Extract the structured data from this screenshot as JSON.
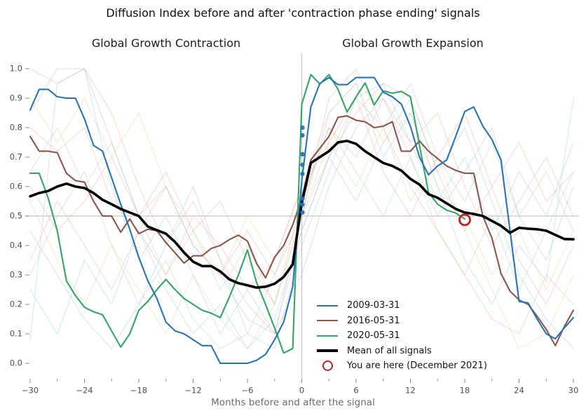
{
  "title": "Diffusion Index before and after 'contraction phase ending' signals",
  "panel_labels": {
    "left": "Global Growth Contraction",
    "right": "Global Growth Expansion"
  },
  "legend": {
    "items": [
      {
        "label": "2009-03-31",
        "type": "line",
        "color": "#2874b2"
      },
      {
        "label": "2016-05-31",
        "type": "line",
        "color": "#8c564b"
      },
      {
        "label": "2020-05-31",
        "type": "line",
        "color": "#33a567"
      },
      {
        "label": "Mean of all signals",
        "type": "thick-line",
        "color": "#000000"
      },
      {
        "label": "You are here (December 2021)",
        "type": "ring",
        "color": "#b9242a"
      }
    ]
  },
  "colors": {
    "blue": "#2874b2",
    "brown": "#8c564b",
    "green": "#33a567",
    "mean": "#000000",
    "marker_red": "#b9242a",
    "ref_gray": "#c6c6c6",
    "tick": "#8a8a8a",
    "tick_label": "#4d4d4d"
  },
  "chart_data": {
    "type": "line",
    "title": "Diffusion Index before and after 'contraction phase ending' signals",
    "xlabel": "Months before and after the signal",
    "ylabel": "",
    "xlim": [
      -30.5,
      30.5
    ],
    "ylim": [
      -0.05,
      1.05
    ],
    "grid": false,
    "legend_position": "lower-center-right",
    "x_ticks_major": [
      -30,
      -24,
      -18,
      -12,
      -6,
      0,
      6,
      12,
      18,
      24,
      30
    ],
    "x_tick_labels": [
      "−30",
      "−24",
      "−18",
      "−12",
      "−6",
      "0",
      "6",
      "12",
      "18",
      "24",
      "30"
    ],
    "x_ticks_minor": [
      -27,
      -21,
      -15,
      -9,
      -3,
      3,
      9,
      15,
      21,
      27
    ],
    "y_ticks": [
      0.0,
      0.1,
      0.2,
      0.3,
      0.4,
      0.5,
      0.6,
      0.7,
      0.8,
      0.9,
      1.0
    ],
    "y_tick_labels": [
      "0.0",
      "0.1",
      "0.2",
      "0.3",
      "0.4",
      "0.5",
      "0.6",
      "0.7",
      "0.8",
      "0.9",
      "1.0"
    ],
    "reference_lines": {
      "horizontal_y": 0.5,
      "vertical_x": 0
    },
    "x": [
      -30,
      -29,
      -28,
      -27,
      -26,
      -25,
      -24,
      -23,
      -22,
      -21,
      -20,
      -19,
      -18,
      -17,
      -16,
      -15,
      -14,
      -13,
      -12,
      -11,
      -10,
      -9,
      -8,
      -7,
      -6,
      -5,
      -4,
      -3,
      -2,
      -1,
      0,
      1,
      2,
      3,
      4,
      5,
      6,
      7,
      8,
      9,
      10,
      11,
      12,
      13,
      14,
      15,
      16,
      17,
      18,
      19,
      20,
      21,
      22,
      23,
      24,
      25,
      26,
      27,
      28,
      29,
      30
    ],
    "series": [
      {
        "name": "2009-03-31",
        "color": "#2874b2",
        "width": 2.1,
        "values": [
          0.86,
          0.93,
          0.93,
          0.905,
          0.9,
          0.9,
          0.83,
          0.74,
          0.72,
          0.63,
          0.54,
          0.455,
          0.36,
          0.28,
          0.22,
          0.14,
          0.11,
          0.1,
          0.08,
          0.06,
          0.06,
          0.0,
          0.0,
          0.0,
          0.0,
          0.01,
          0.03,
          0.08,
          0.14,
          0.26,
          0.62,
          0.87,
          0.95,
          0.97,
          0.946,
          0.946,
          0.97,
          0.97,
          0.97,
          0.92,
          0.905,
          0.88,
          0.805,
          0.7,
          0.64,
          0.67,
          0.69,
          0.77,
          0.855,
          0.87,
          0.805,
          0.76,
          0.69,
          0.45,
          0.21,
          0.205,
          0.15,
          0.1,
          0.083,
          0.12,
          0.155
        ]
      },
      {
        "name": "2016-05-31",
        "color": "#8c564b",
        "width": 2.1,
        "values": [
          0.77,
          0.72,
          0.72,
          0.715,
          0.645,
          0.62,
          0.615,
          0.55,
          0.5,
          0.5,
          0.445,
          0.49,
          0.44,
          0.455,
          0.45,
          0.41,
          0.375,
          0.34,
          0.365,
          0.365,
          0.39,
          0.4,
          0.42,
          0.435,
          0.415,
          0.34,
          0.29,
          0.36,
          0.4,
          0.47,
          0.56,
          0.69,
          0.73,
          0.77,
          0.835,
          0.84,
          0.825,
          0.82,
          0.8,
          0.805,
          0.82,
          0.72,
          0.72,
          0.755,
          0.72,
          0.695,
          0.67,
          0.655,
          0.645,
          0.645,
          0.5,
          0.425,
          0.305,
          0.245,
          0.215,
          0.2,
          0.16,
          0.115,
          0.06,
          0.125,
          0.18
        ]
      },
      {
        "name": "2020-05-31",
        "color": "#33a567",
        "width": 2.1,
        "values": [
          0.645,
          0.645,
          0.56,
          0.45,
          0.28,
          0.23,
          0.19,
          0.175,
          0.165,
          0.11,
          0.055,
          0.1,
          0.18,
          0.21,
          0.25,
          0.285,
          0.25,
          0.22,
          0.2,
          0.18,
          0.17,
          0.155,
          0.225,
          0.3,
          0.385,
          0.275,
          0.2,
          0.12,
          0.035,
          0.05,
          0.88,
          0.98,
          0.948,
          0.98,
          0.93,
          0.853,
          0.905,
          0.952,
          0.877,
          0.925,
          0.917,
          0.923,
          0.905,
          0.74,
          0.58,
          0.54,
          0.52,
          0.51,
          0.49,
          null,
          null,
          null,
          null,
          null,
          null,
          null,
          null,
          null,
          null,
          null,
          null
        ]
      },
      {
        "name": "Mean of all signals",
        "color": "#000000",
        "width": 3.6,
        "values": [
          0.567,
          0.578,
          0.585,
          0.6,
          0.61,
          0.6,
          0.595,
          0.578,
          0.555,
          0.54,
          0.524,
          0.512,
          0.5,
          0.464,
          0.452,
          0.44,
          0.412,
          0.376,
          0.345,
          0.33,
          0.33,
          0.312,
          0.285,
          0.272,
          0.265,
          0.257,
          0.26,
          0.27,
          0.293,
          0.336,
          0.543,
          0.68,
          0.7,
          0.72,
          0.75,
          0.755,
          0.745,
          0.72,
          0.7,
          0.68,
          0.67,
          0.654,
          0.626,
          0.607,
          0.574,
          0.562,
          0.543,
          0.524,
          0.512,
          0.507,
          0.5,
          0.483,
          0.467,
          0.443,
          0.46,
          0.457,
          0.455,
          0.45,
          0.436,
          0.422,
          0.421
        ]
      }
    ],
    "signal_dots_at_x0": {
      "x": 0,
      "color": "#2874b2",
      "values": [
        0.8,
        0.774,
        0.71,
        0.674,
        0.643,
        0.559,
        0.539,
        0.512
      ]
    },
    "you_are_here_marker": {
      "label": "You are here (December 2021)",
      "x": 18,
      "y": 0.487,
      "color": "#b9242a"
    },
    "background_series": {
      "x": [
        -30,
        -27,
        -24,
        -21,
        -18,
        -15,
        -12,
        -9,
        -6,
        -3,
        0,
        3,
        6,
        9,
        12,
        15,
        18,
        21,
        24,
        27,
        30
      ],
      "opacity": 0.4,
      "lines": [
        {
          "color": "#9fc5e8",
          "values": [
            0.08,
            0.95,
            1.0,
            0.6,
            0.35,
            0.5,
            0.3,
            0.1,
            0.25,
            0.1,
            0.5,
            0.85,
            0.95,
            0.7,
            0.85,
            0.6,
            0.35,
            0.2,
            0.4,
            0.28,
            0.9
          ]
        },
        {
          "color": "#b9b7dd",
          "values": [
            0.85,
            1.0,
            1.0,
            0.75,
            0.5,
            0.6,
            0.4,
            0.3,
            0.15,
            0.1,
            0.3,
            0.6,
            0.8,
            0.9,
            0.7,
            0.5,
            0.65,
            0.8,
            0.5,
            0.35,
            0.6
          ]
        },
        {
          "color": "#f0a8a0",
          "values": [
            0.8,
            0.72,
            0.8,
            0.55,
            0.45,
            0.6,
            0.4,
            0.3,
            0.45,
            0.3,
            0.5,
            0.9,
            1.0,
            0.8,
            0.6,
            0.45,
            0.3,
            0.15,
            0.1,
            0.3,
            0.2
          ]
        },
        {
          "color": "#f0a8a0",
          "values": [
            1.0,
            0.95,
            1.0,
            0.85,
            0.6,
            0.4,
            0.55,
            0.35,
            0.2,
            0.1,
            0.45,
            0.7,
            0.85,
            0.95,
            0.9,
            0.65,
            0.45,
            0.6,
            0.35,
            0.2,
            0.4
          ]
        },
        {
          "color": "#e2d096",
          "values": [
            0.55,
            0.35,
            0.2,
            0.4,
            0.25,
            0.1,
            0.3,
            0.15,
            0.05,
            0.2,
            0.5,
            0.75,
            0.6,
            0.8,
            0.55,
            0.7,
            0.45,
            0.25,
            0.05,
            0.1,
            0.3
          ]
        },
        {
          "color": "#a8d8a8",
          "values": [
            0.3,
            0.5,
            0.65,
            0.4,
            0.2,
            0.35,
            0.15,
            0.05,
            0.1,
            0.3,
            0.55,
            0.8,
            0.65,
            0.5,
            0.7,
            0.45,
            0.3,
            0.5,
            0.25,
            0.45,
            0.65
          ]
        },
        {
          "color": "#9fc5e8",
          "values": [
            0.45,
            0.3,
            0.15,
            0.05,
            0.2,
            0.4,
            0.6,
            0.35,
            0.1,
            0.05,
            0.4,
            0.65,
            0.9,
            0.95,
            0.75,
            0.55,
            0.7,
            0.45,
            0.65,
            0.5,
            0.75
          ]
        },
        {
          "color": "#f0a8a0",
          "values": [
            0.6,
            0.45,
            0.55,
            0.7,
            0.5,
            0.65,
            0.45,
            0.55,
            0.35,
            0.2,
            0.55,
            0.8,
            0.7,
            0.9,
            0.75,
            0.85,
            0.6,
            0.4,
            0.55,
            0.7,
            0.5
          ]
        },
        {
          "color": "#e2d096",
          "values": [
            0.9,
            0.75,
            0.9,
            0.7,
            0.85,
            0.6,
            0.45,
            0.3,
            0.5,
            0.35,
            0.6,
            0.85,
            0.95,
            0.75,
            0.85,
            0.6,
            0.5,
            0.3,
            0.45,
            0.25,
            0.45
          ]
        },
        {
          "color": "#a8d8a8",
          "values": [
            0.65,
            0.8,
            0.6,
            0.75,
            0.5,
            0.3,
            0.45,
            0.25,
            0.4,
            0.2,
            0.5,
            0.7,
            0.9,
            0.8,
            0.95,
            0.7,
            0.55,
            0.75,
            0.5,
            0.65,
            0.45
          ]
        },
        {
          "color": "#9fc5e8",
          "values": [
            0.25,
            0.1,
            0.35,
            0.2,
            0.45,
            0.25,
            0.1,
            0.2,
            0.05,
            0.15,
            0.45,
            0.7,
            0.55,
            0.75,
            0.9,
            0.65,
            0.8,
            0.55,
            0.3,
            0.15,
            0.05
          ]
        },
        {
          "color": "#f0a8a0",
          "values": [
            0.35,
            0.55,
            0.4,
            0.25,
            0.45,
            0.3,
            0.5,
            0.4,
            0.25,
            0.35,
            0.6,
            0.75,
            0.9,
            0.65,
            0.5,
            0.7,
            0.85,
            0.6,
            0.75,
            0.55,
            0.65
          ]
        }
      ]
    }
  }
}
